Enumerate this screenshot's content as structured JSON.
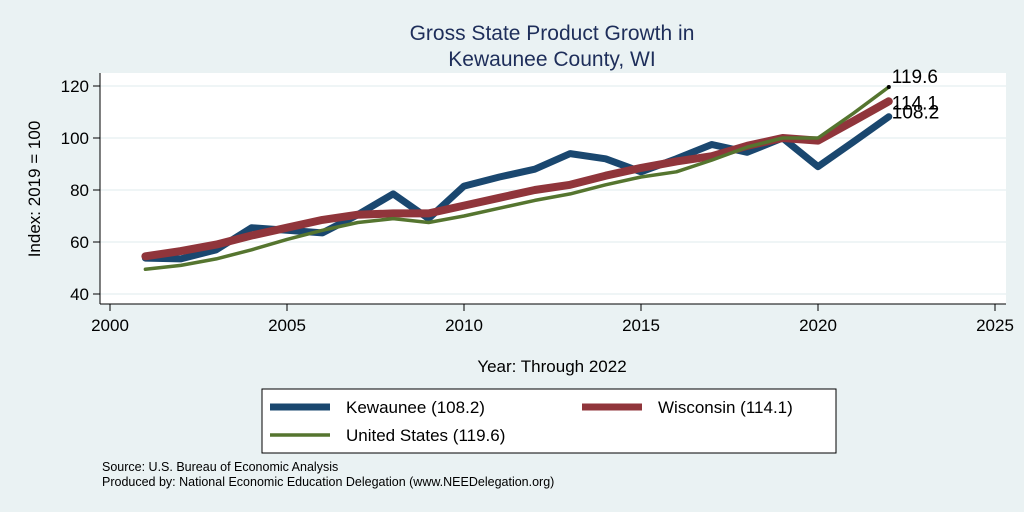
{
  "chart_data": {
    "type": "line",
    "title": [
      "Gross State Product Growth in",
      "Kewaunee County, WI"
    ],
    "xlabel": "Year: Through 2022",
    "ylabel": "Index: 2019 = 100",
    "xlim": [
      2000,
      2025
    ],
    "ylim": [
      37,
      125
    ],
    "xticks": [
      2000,
      2005,
      2010,
      2015,
      2020,
      2025
    ],
    "yticks": [
      40,
      60,
      80,
      100,
      120
    ],
    "grid": "horizontal",
    "x": [
      2001,
      2002,
      2003,
      2004,
      2005,
      2006,
      2007,
      2008,
      2009,
      2010,
      2011,
      2012,
      2013,
      2014,
      2015,
      2016,
      2017,
      2018,
      2019,
      2020,
      2021,
      2022
    ],
    "series": [
      {
        "name": "Kewaunee",
        "legend_label": "Kewaunee  (108.2)",
        "color": "#1a476f",
        "end_label": "108.2",
        "values": [
          53.8,
          53.5,
          57.0,
          65.5,
          64.5,
          63.5,
          70.5,
          78.5,
          69.0,
          81.5,
          85.0,
          88.0,
          94.0,
          92.0,
          87.0,
          92.0,
          97.5,
          94.5,
          100.0,
          89.0,
          98.5,
          108.2
        ]
      },
      {
        "name": "Wisconsin",
        "legend_label": "Wisconsin (114.1)",
        "color": "#90353b",
        "end_label": "114.1",
        "values": [
          54.5,
          56.5,
          59.0,
          62.5,
          65.5,
          68.5,
          70.5,
          71.0,
          71.0,
          74.0,
          77.0,
          80.0,
          82.0,
          85.5,
          88.5,
          91.0,
          93.0,
          97.0,
          100.0,
          99.0,
          106.5,
          114.1
        ]
      },
      {
        "name": "United States",
        "legend_label": "United States (119.6)",
        "color": "#55752f",
        "end_label": "119.6",
        "values": [
          49.5,
          51.0,
          53.5,
          57.0,
          61.0,
          64.5,
          67.5,
          69.0,
          67.5,
          70.0,
          73.0,
          76.0,
          78.5,
          82.0,
          85.0,
          87.0,
          91.5,
          96.5,
          100.0,
          100.0,
          109.5,
          119.6
        ]
      }
    ],
    "legend_placement": "bottom",
    "notes": [
      "Source: U.S. Bureau of Economic Analysis",
      "Produced by: National Economic Education Delegation (www.NEEDelegation.org)"
    ]
  }
}
